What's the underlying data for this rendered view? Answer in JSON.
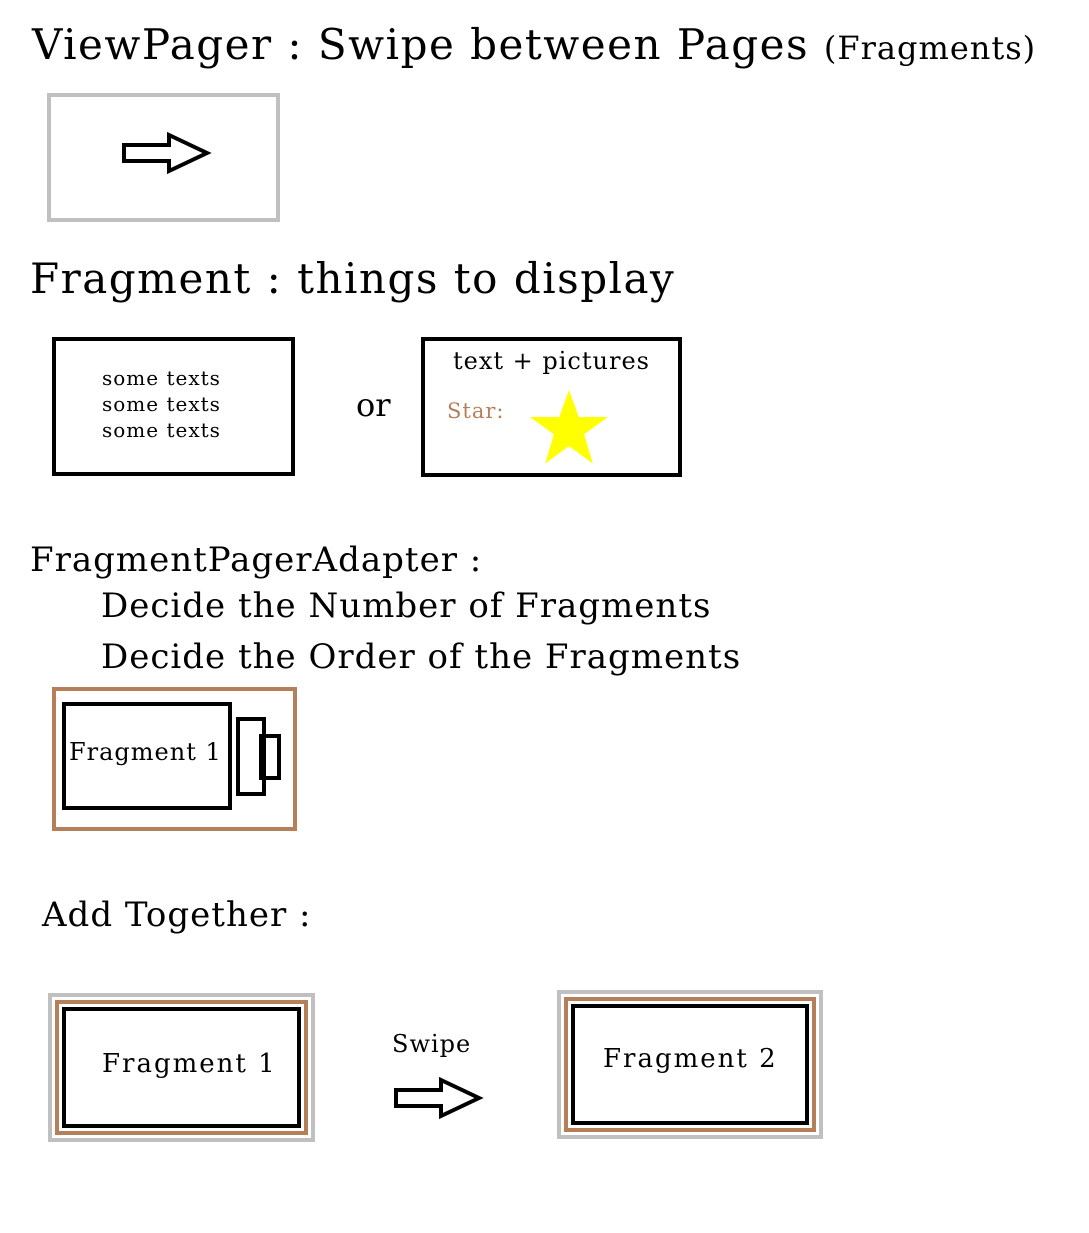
{
  "viewpager": {
    "heading": "ViewPager : Swipe between Pages",
    "heading_suffix": "(Fragments)"
  },
  "fragment": {
    "heading": "Fragment : things to display",
    "text_lines": [
      "some texts",
      "some texts",
      "some texts"
    ],
    "or_label": "or",
    "pictures_title": "text + pictures",
    "star_label": "Star:"
  },
  "adapter": {
    "heading": "FragmentPagerAdapter :",
    "lines": [
      "Decide the Number of Fragments",
      "Decide the Order of the Fragments"
    ],
    "fragment_label": "Fragment 1"
  },
  "together": {
    "heading": "Add Together :",
    "left_fragment": "Fragment 1",
    "swipe_label": "Swipe",
    "right_fragment": "Fragment 2"
  },
  "colors": {
    "gray_border": "#c0c0c0",
    "brown_border": "#b57f5a",
    "star_fill": "#ffff00",
    "star_label": "#b57f5a"
  },
  "icons": [
    "right-arrow-icon",
    "star-icon"
  ]
}
